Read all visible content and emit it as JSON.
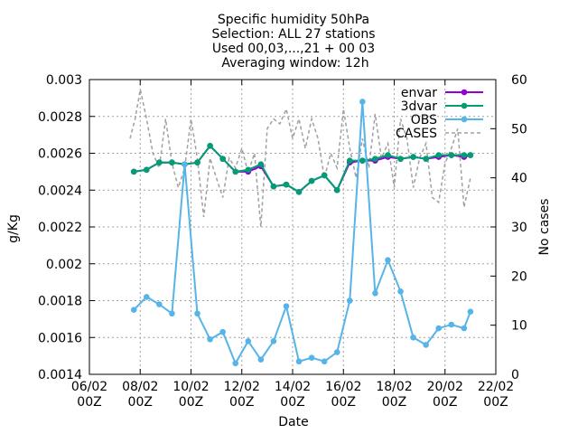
{
  "chart_data": {
    "type": "line",
    "title": [
      "Specific humidity 50hPa",
      "Selection: ALL      27 stations",
      "Used 00,03,...,21 + 00 03",
      "Averaging window: 12h"
    ],
    "xlabel": "Date",
    "ylabel": "g/Kg",
    "y2label": "No cases",
    "x_ticks": [
      {
        "day": 6,
        "line1": "06/02",
        "line2": "00Z"
      },
      {
        "day": 8,
        "line1": "08/02",
        "line2": "00Z"
      },
      {
        "day": 10,
        "line1": "10/02",
        "line2": "00Z"
      },
      {
        "day": 12,
        "line1": "12/02",
        "line2": "00Z"
      },
      {
        "day": 14,
        "line1": "14/02",
        "line2": "00Z"
      },
      {
        "day": 16,
        "line1": "16/02",
        "line2": "00Z"
      },
      {
        "day": 18,
        "line1": "18/02",
        "line2": "00Z"
      },
      {
        "day": 20,
        "line1": "20/02",
        "line2": "00Z"
      },
      {
        "day": 22,
        "line1": "22/02",
        "line2": "00Z"
      }
    ],
    "xlim": [
      6,
      22
    ],
    "ylim": [
      0.0014,
      0.003
    ],
    "y_ticks": [
      "0.0014",
      "0.0016",
      "0.0018",
      "0.002",
      "0.0022",
      "0.0024",
      "0.0026",
      "0.0028",
      "0.003"
    ],
    "y2lim": [
      0,
      60
    ],
    "y2_ticks": [
      "0",
      "10",
      "20",
      "30",
      "40",
      "50",
      "60"
    ],
    "legend_position": "top-right",
    "x": [
      7.75,
      8.25,
      8.75,
      9.25,
      9.75,
      10.25,
      10.75,
      11.25,
      11.75,
      12.25,
      12.75,
      13.25,
      13.75,
      14.25,
      14.75,
      15.25,
      15.75,
      16.25,
      16.75,
      17.25,
      17.75,
      18.25,
      18.75,
      19.25,
      19.75,
      20.25,
      20.75,
      21.0
    ],
    "series": [
      {
        "name": "envar",
        "color": "#9400d3",
        "axis": "y1",
        "style": "line-points",
        "values": [
          0.0025,
          0.00251,
          0.00255,
          0.00255,
          0.00254,
          0.00255,
          0.00264,
          0.00257,
          0.0025,
          0.0025,
          0.00253,
          0.00242,
          0.00243,
          0.00239,
          0.00245,
          0.00248,
          0.0024,
          0.00255,
          0.00256,
          0.00256,
          0.00258,
          0.00257,
          0.00258,
          0.00257,
          0.00258,
          0.00259,
          0.00258,
          0.00259
        ]
      },
      {
        "name": "3dvar",
        "color": "#009e73",
        "axis": "y1",
        "style": "line-points",
        "values": [
          0.0025,
          0.00251,
          0.00255,
          0.00255,
          0.00254,
          0.00255,
          0.00264,
          0.00257,
          0.0025,
          0.00251,
          0.00254,
          0.00242,
          0.00243,
          0.00239,
          0.00245,
          0.00248,
          0.0024,
          0.00256,
          0.00256,
          0.00257,
          0.00259,
          0.00257,
          0.00258,
          0.00257,
          0.00259,
          0.00259,
          0.00259,
          0.00259
        ]
      },
      {
        "name": "OBS",
        "color": "#56b4e9",
        "axis": "y1",
        "style": "line-points",
        "values": [
          0.00175,
          0.00182,
          0.00178,
          0.00173,
          0.00254,
          0.00173,
          0.00159,
          0.00163,
          0.00146,
          0.00158,
          0.00148,
          0.00158,
          0.00177,
          0.00147,
          0.00149,
          0.00147,
          0.00152,
          0.0018,
          0.00288,
          0.00184,
          0.00202,
          0.00185,
          0.0016,
          0.00156,
          0.00165,
          0.00167,
          0.00165,
          0.00174
        ]
      },
      {
        "name": "CASES",
        "color": "#a0a0a0",
        "axis": "y2",
        "style": "dashed",
        "x": [
          7.6,
          7.8,
          8.0,
          8.25,
          8.5,
          8.75,
          9.0,
          9.25,
          9.5,
          9.75,
          10.0,
          10.25,
          10.5,
          10.75,
          11.0,
          11.25,
          11.5,
          11.75,
          12.0,
          12.25,
          12.5,
          12.75,
          13.0,
          13.25,
          13.5,
          13.75,
          14.0,
          14.25,
          14.5,
          14.75,
          15.0,
          15.25,
          15.5,
          15.75,
          16.0,
          16.25,
          16.5,
          16.75,
          17.0,
          17.25,
          17.5,
          17.75,
          18.0,
          18.25,
          18.5,
          18.75,
          19.0,
          19.25,
          19.5,
          19.75,
          20.0,
          20.25,
          20.5,
          20.75,
          21.0
        ],
        "values": [
          48,
          52,
          58,
          52,
          45,
          42,
          52,
          43,
          38,
          42,
          52,
          44,
          32,
          44,
          40,
          36,
          44,
          42,
          46,
          41,
          45,
          30,
          50,
          52,
          51,
          54,
          48,
          52,
          46,
          52,
          48,
          40,
          45,
          42,
          54,
          46,
          40,
          48,
          42,
          53,
          44,
          47,
          38,
          52,
          48,
          38,
          44,
          47,
          36,
          35,
          43,
          46,
          50,
          34,
          40
        ]
      }
    ]
  }
}
